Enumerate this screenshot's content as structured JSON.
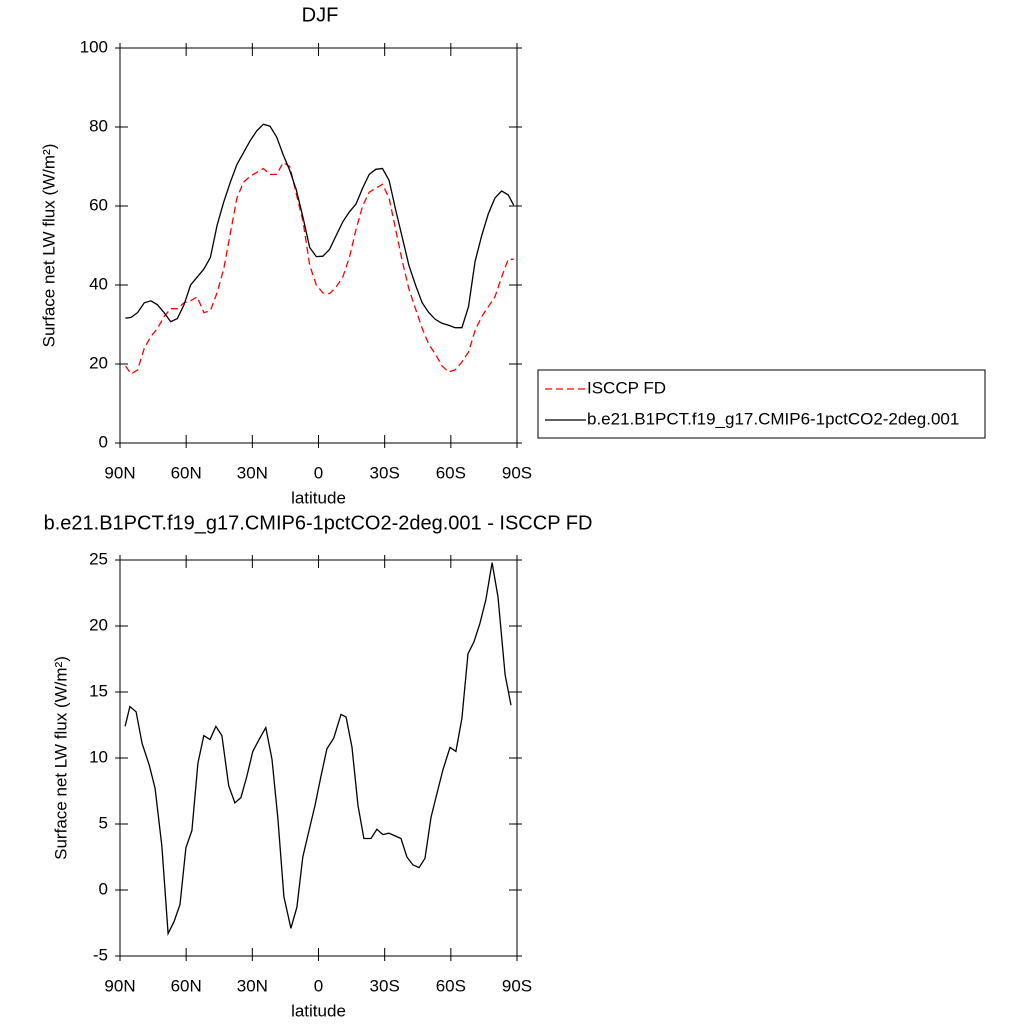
{
  "chart_data": [
    {
      "type": "line",
      "title": "DJF",
      "xlabel": "latitude",
      "ylabel": "Surface net LW flux (W/m²)",
      "x": [
        87.5,
        85,
        82,
        79,
        76,
        73,
        70,
        67,
        64,
        61,
        58,
        55,
        52,
        49,
        46,
        43,
        40,
        37,
        34,
        31,
        28,
        25,
        22,
        19,
        16,
        13,
        10,
        7,
        4,
        1,
        -2,
        -5,
        -8,
        -11,
        -14,
        -17,
        -20,
        -23,
        -26,
        -29,
        -32,
        -35,
        -38,
        -41,
        -44,
        -47,
        -50,
        -53,
        -56,
        -59,
        -62,
        -65,
        -68,
        -71,
        -74,
        -77,
        -80,
        -83,
        -86,
        -88.5
      ],
      "series": [
        {
          "name": "ISCCP FD",
          "color": "#ff0000",
          "line_style": "dashed",
          "values": [
            19.5,
            17.5,
            18.5,
            24,
            27,
            29,
            32,
            34,
            34,
            35.5,
            36,
            37,
            33,
            33.5,
            38,
            44,
            53,
            62,
            66,
            67.5,
            68.5,
            69.5,
            68,
            68,
            71,
            70,
            63,
            56,
            45,
            40,
            38,
            37.8,
            39.5,
            42,
            47,
            54,
            60,
            63.5,
            64.5,
            65.5,
            62,
            54,
            46,
            39,
            34,
            29,
            25,
            22.5,
            19.5,
            18,
            18.5,
            20.5,
            23,
            28.5,
            32,
            34.5,
            37,
            42,
            46.5,
            46.5
          ]
        },
        {
          "name": "b.e21.B1PCT.f19_g17.CMIP6-1pctCO2-2deg.001",
          "color": "#000000",
          "line_style": "solid",
          "values": [
            31.6,
            31.8,
            33,
            35.5,
            36,
            35,
            33,
            30.7,
            31.5,
            35,
            40,
            42,
            44,
            47,
            55,
            61,
            66,
            70.5,
            73.5,
            76.5,
            79,
            80.7,
            80.2,
            77.5,
            73,
            69,
            64,
            57,
            49.5,
            47.2,
            47.3,
            49,
            52.5,
            56,
            58.5,
            60.5,
            64.5,
            68,
            69.3,
            69.5,
            66.5,
            59,
            52,
            45,
            40,
            35.5,
            33,
            31.3,
            30.3,
            29.8,
            29.2,
            29.2,
            34.5,
            46,
            52.5,
            58,
            62,
            63.8,
            62.8,
            60.2
          ]
        }
      ],
      "xlim": [
        90,
        -90
      ],
      "xticks": [
        {
          "value": 90,
          "label": "90N"
        },
        {
          "value": 60,
          "label": "60N"
        },
        {
          "value": 30,
          "label": "30N"
        },
        0,
        {
          "value": -30,
          "label": "30S"
        },
        {
          "value": -60,
          "label": "60S"
        },
        {
          "value": -90,
          "label": "90S"
        }
      ],
      "ylim": [
        0,
        100
      ],
      "yticks": [
        0,
        20,
        40,
        60,
        80,
        100
      ],
      "legend": "outside right",
      "grid": false
    },
    {
      "type": "line",
      "title": "b.e21.B1PCT.f19_g17.CMIP6-1pctCO2-2deg.001 - ISCCP FD",
      "xlabel": "latitude",
      "ylabel": "Surface net LW flux (W/m²)",
      "x": [
        87.7,
        85.5,
        82.7,
        80.0,
        76.8,
        74.1,
        71.0,
        68.2,
        65.5,
        62.8,
        60.1,
        57.4,
        54.7,
        52.0,
        49.2,
        46.5,
        43.8,
        40.7,
        37.9,
        35.2,
        32.5,
        29.8,
        26.6,
        23.9,
        21.1,
        18.4,
        15.7,
        12.5,
        9.8,
        7.1,
        4.3,
        1.6,
        -1.1,
        -3.8,
        -6.9,
        -10.2,
        -12.5,
        -15.2,
        -17.9,
        -20.6,
        -23.8,
        -26.5,
        -29.2,
        -31.9,
        -34.7,
        -37.4,
        -40.1,
        -42.8,
        -45.6,
        -48.3,
        -51.0,
        -53.7,
        -56.4,
        -59.6,
        -62.3,
        -65.0,
        -67.8,
        -70.5,
        -73.2,
        -75.9,
        -78.7,
        -81.4,
        -84.6,
        -87.3
      ],
      "series": [
        {
          "color": "#000000",
          "line_style": "solid",
          "values": [
            12.4,
            13.9,
            13.5,
            11.1,
            9.5,
            7.7,
            3.3,
            -3.3,
            -2.4,
            -1.1,
            3.2,
            4.5,
            9.6,
            11.7,
            11.4,
            12.4,
            11.7,
            7.9,
            6.6,
            7.0,
            8.6,
            10.5,
            11.5,
            12.3,
            9.9,
            5.4,
            -0.5,
            -2.9,
            -1.3,
            2.5,
            4.5,
            6.4,
            8.6,
            10.7,
            11.5,
            13.3,
            13.1,
            10.8,
            6.4,
            3.9,
            3.9,
            4.6,
            4.2,
            4.3,
            4.1,
            3.9,
            2.5,
            1.9,
            1.7,
            2.4,
            5.5,
            7.3,
            9.1,
            10.8,
            10.5,
            13.0,
            17.9,
            18.8,
            20.2,
            22.0,
            24.8,
            22.2,
            16.3,
            14.0
          ]
        }
      ],
      "xlim": [
        90,
        -90
      ],
      "xticks": [
        {
          "value": 90,
          "label": "90N"
        },
        {
          "value": 60,
          "label": "60N"
        },
        {
          "value": 30,
          "label": "30N"
        },
        0,
        {
          "value": -30,
          "label": "30S"
        },
        {
          "value": -60,
          "label": "60S"
        },
        {
          "value": -90,
          "label": "90S"
        }
      ],
      "ylim": [
        -5,
        25
      ],
      "yticks": [
        -5,
        0,
        5,
        10,
        15,
        20,
        25
      ],
      "grid": false
    }
  ]
}
